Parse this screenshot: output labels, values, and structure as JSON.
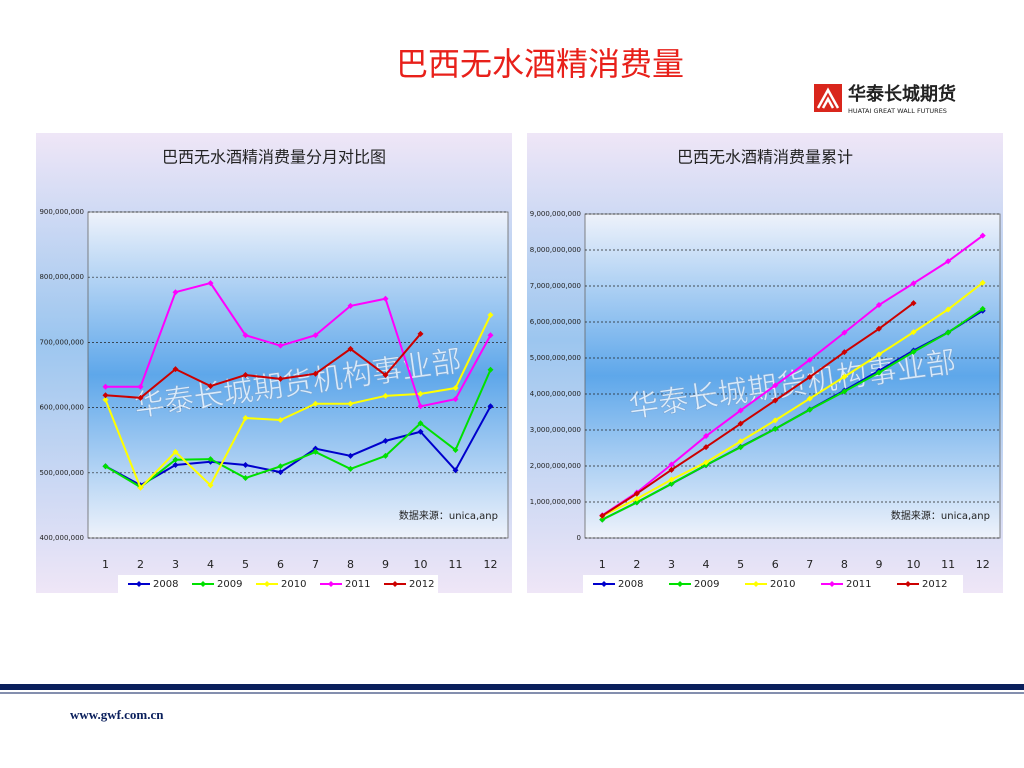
{
  "page": {
    "title": "巴西无水酒精消费量",
    "logo_name": "华泰长城期货",
    "logo_subtitle": "HUATAI GREAT WALL FUTURES",
    "footer_url": "www.gwf.com.cn"
  },
  "chart_data": [
    {
      "type": "line",
      "title": "巴西无水酒精消费量分月对比图",
      "note": "数据来源：unica,anp",
      "watermark": "华泰长城期货机构事业部",
      "categories": [
        "1",
        "2",
        "3",
        "4",
        "5",
        "6",
        "7",
        "8",
        "9",
        "10",
        "11",
        "12"
      ],
      "ylim": [
        400000000,
        900000000
      ],
      "yticks": [
        {
          "value": 400000000,
          "label": "400,000,000"
        },
        {
          "value": 500000000,
          "label": "500,000,000"
        },
        {
          "value": 600000000,
          "label": "600,000,000"
        },
        {
          "value": 700000000,
          "label": "700,000,000"
        },
        {
          "value": 800000000,
          "label": "800,000,000"
        },
        {
          "value": 900000000,
          "label": "900,000,000"
        }
      ],
      "grid": true,
      "series": [
        {
          "name": "2008",
          "color": "#0000cc",
          "values": [
            510000000,
            481000000,
            512000000,
            517000000,
            512000000,
            501000000,
            537000000,
            526000000,
            549000000,
            563000000,
            504000000,
            602000000
          ]
        },
        {
          "name": "2009",
          "color": "#00e000",
          "values": [
            510000000,
            478000000,
            520000000,
            521000000,
            492000000,
            510000000,
            532000000,
            506000000,
            526000000,
            576000000,
            535000000,
            658000000
          ]
        },
        {
          "name": "2010",
          "color": "#ffff00",
          "values": [
            612000000,
            477000000,
            532000000,
            481000000,
            584000000,
            581000000,
            606000000,
            606000000,
            618000000,
            621000000,
            630000000,
            742000000
          ]
        },
        {
          "name": "2011",
          "color": "#ff00ff",
          "values": [
            632000000,
            632000000,
            777000000,
            791000000,
            711000000,
            695000000,
            711000000,
            756000000,
            767000000,
            602000000,
            613000000,
            711000000
          ]
        },
        {
          "name": "2012",
          "color": "#cc0000",
          "values": [
            619000000,
            615000000,
            659000000,
            633000000,
            650000000,
            644000000,
            652000000,
            690000000,
            650000000,
            713000000,
            null,
            null
          ]
        }
      ]
    },
    {
      "type": "line",
      "title": "巴西无水酒精消费量累计",
      "note": "数据来源：unica,anp",
      "watermark": "华泰长城期货机构事业部",
      "categories": [
        "1",
        "2",
        "3",
        "4",
        "5",
        "6",
        "7",
        "8",
        "9",
        "10",
        "11",
        "12"
      ],
      "ylim": [
        0,
        9000000000
      ],
      "yticks": [
        0,
        {
          "value": 1000000000,
          "label": "1,000,000,000"
        },
        {
          "value": 2000000000,
          "label": "2,000,000,000"
        },
        {
          "value": 3000000000,
          "label": "3,000,000,000"
        },
        {
          "value": 4000000000,
          "label": "4,000,000,000"
        },
        {
          "value": 5000000000,
          "label": "5,000,000,000"
        },
        {
          "value": 6000000000,
          "label": "6,000,000,000"
        },
        {
          "value": 7000000000,
          "label": "7,000,000,000"
        },
        {
          "value": 8000000000,
          "label": "8,000,000,000"
        },
        {
          "value": 9000000000,
          "label": "9,000,000,000"
        }
      ],
      "grid": true,
      "series": [
        {
          "name": "2008",
          "color": "#0000cc",
          "values": [
            510000000,
            991000000,
            1503000000,
            2020000000,
            2532000000,
            3033000000,
            3570000000,
            4096000000,
            4645000000,
            5208000000,
            5712000000,
            6314000000
          ]
        },
        {
          "name": "2009",
          "color": "#00e000",
          "values": [
            510000000,
            988000000,
            1508000000,
            2029000000,
            2521000000,
            3031000000,
            3563000000,
            4069000000,
            4595000000,
            5171000000,
            5706000000,
            6364000000
          ]
        },
        {
          "name": "2010",
          "color": "#ffff00",
          "values": [
            612000000,
            1089000000,
            1621000000,
            2102000000,
            2686000000,
            3267000000,
            3873000000,
            4479000000,
            5097000000,
            5718000000,
            6348000000,
            7090000000
          ]
        },
        {
          "name": "2011",
          "color": "#ff00ff",
          "values": [
            632000000,
            1264000000,
            2041000000,
            2832000000,
            3543000000,
            4238000000,
            4949000000,
            5705000000,
            6472000000,
            7074000000,
            7687000000,
            8398000000
          ]
        },
        {
          "name": "2012",
          "color": "#cc0000",
          "values": [
            619000000,
            1234000000,
            1893000000,
            2526000000,
            3176000000,
            3820000000,
            4472000000,
            5162000000,
            5812000000,
            6525000000,
            null,
            null
          ]
        }
      ]
    }
  ]
}
